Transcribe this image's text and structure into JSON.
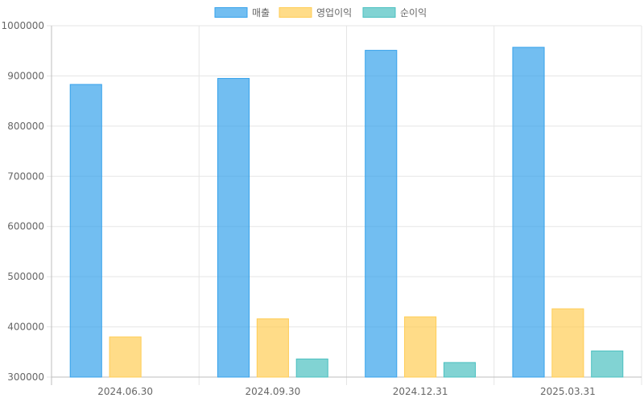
{
  "chart_data": {
    "type": "bar",
    "categories": [
      "2024.06.30",
      "2024.09.30",
      "2024.12.31",
      "2025.03.31"
    ],
    "series": [
      {
        "name": "매출",
        "values": [
          883000,
          895000,
          951000,
          957000
        ],
        "color": "#36a2eb"
      },
      {
        "name": "영업이익",
        "values": [
          380000,
          416000,
          420000,
          436000
        ],
        "color": "#ffcd56"
      },
      {
        "name": "순이익",
        "values": [
          300000,
          336000,
          329000,
          352000
        ],
        "color": "#4bc0c0"
      }
    ],
    "ylim": [
      300000,
      1000000
    ],
    "yticks": [
      "1000000",
      "900000",
      "800000",
      "700000",
      "600000",
      "500000",
      "400000",
      "300000"
    ],
    "ytick_values": [
      1000000,
      900000,
      800000,
      700000,
      600000,
      500000,
      400000,
      300000
    ],
    "grid": true,
    "legend_position": "top"
  }
}
